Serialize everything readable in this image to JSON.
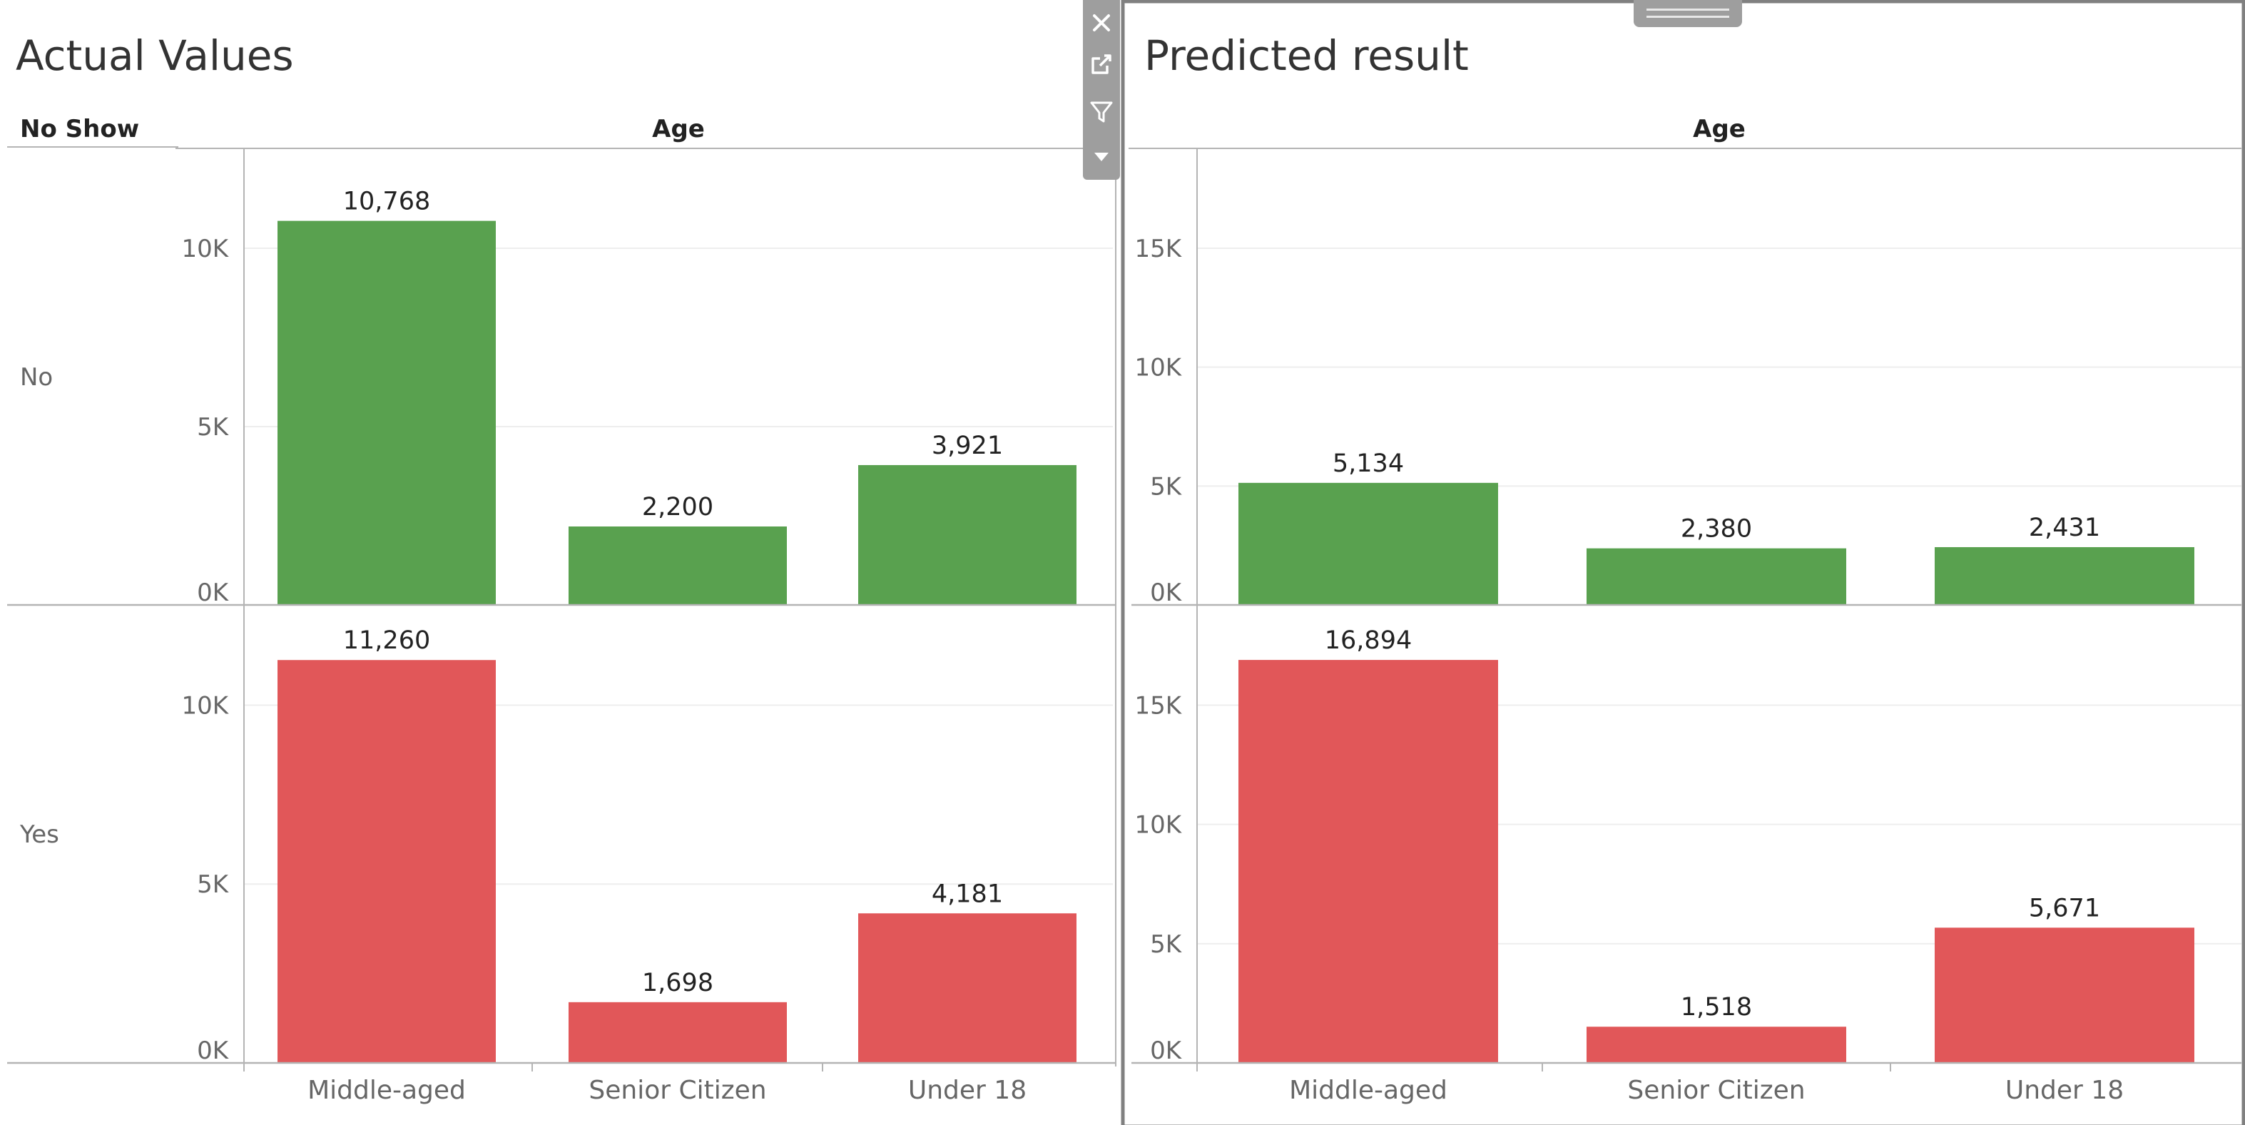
{
  "colors": {
    "no_bar": "#59a14f",
    "yes_bar": "#e15759",
    "axis_text": "#666666",
    "label_text": "#222222",
    "title_text": "#333333",
    "gridline": "#eeeeee",
    "divider": "#b4b4b4",
    "panel_border": "#808080"
  },
  "dashboard": {
    "toolbar_icons": [
      "close-icon",
      "open-external-icon",
      "filter-icon",
      "menu-dropdown-icon"
    ],
    "grip_icon": "drag-grip-icon"
  },
  "chart_data": [
    {
      "type": "bar",
      "title": "Actual Values",
      "row_field": "No Show",
      "column_field": "Age",
      "categories": [
        "Middle-aged",
        "Senior Citizen",
        "Under 18"
      ],
      "series": [
        {
          "name": "No",
          "values": [
            10768,
            2200,
            3921
          ],
          "value_labels": [
            "10,768",
            "2,200",
            "3,921"
          ],
          "ylim": [
            0,
            12800
          ],
          "yticks": [
            0,
            5000,
            10000
          ],
          "ytick_labels": [
            "0K",
            "5K",
            "10K"
          ]
        },
        {
          "name": "Yes",
          "values": [
            11260,
            1698,
            4181
          ],
          "value_labels": [
            "11,260",
            "1,698",
            "4,181"
          ],
          "ylim": [
            0,
            12800
          ],
          "yticks": [
            0,
            5000,
            10000
          ],
          "ytick_labels": [
            "0K",
            "5K",
            "10K"
          ]
        }
      ]
    },
    {
      "type": "bar",
      "title": "Predicted result",
      "row_field": "",
      "column_field": "Age",
      "categories": [
        "Middle-aged",
        "Senior Citizen",
        "Under 18"
      ],
      "series": [
        {
          "name": "No",
          "values": [
            5134,
            2380,
            2431
          ],
          "value_labels": [
            "5,134",
            "2,380",
            "2,431"
          ],
          "ylim": [
            0,
            19200
          ],
          "yticks": [
            0,
            5000,
            10000,
            15000
          ],
          "ytick_labels": [
            "0K",
            "5K",
            "10K",
            "15K"
          ]
        },
        {
          "name": "Yes",
          "values": [
            16894,
            1518,
            5671
          ],
          "value_labels": [
            "16,894",
            "1,518",
            "5,671"
          ],
          "ylim": [
            0,
            19200
          ],
          "yticks": [
            0,
            5000,
            10000,
            15000
          ],
          "ytick_labels": [
            "0K",
            "5K",
            "10K",
            "15K"
          ]
        }
      ]
    }
  ]
}
